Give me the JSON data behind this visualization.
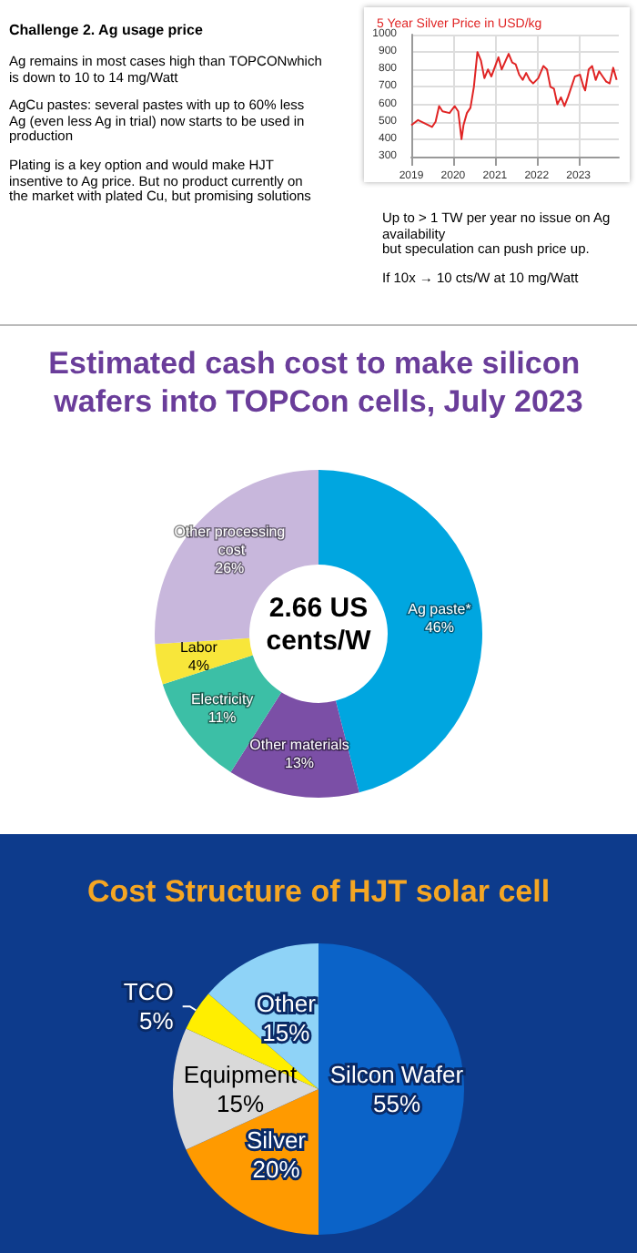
{
  "chart_data": [
    {
      "type": "other",
      "title": "Challenge 2.  Ag usage price",
      "annotations": [
        "Ag remains in most cases high  than TOPCONwhich is down to 10 to 14 mg/Watt",
        "AgCu pastes: several pastes with up to 60% less Ag (even less Ag in trial) now starts to be used in production",
        "Plating is a key option and would make HJT insentive to Ag price. But no product currently on the market with plated Cu, but promising solutions",
        "Up to > 1 TW per year no issue on Ag availability\nbut speculation can push price up.",
        "If 10x → 10 cts/W at 10 mg/Watt"
      ]
    },
    {
      "type": "line",
      "title": "5 Year Silver Price in USD/kg",
      "color": "#e02424",
      "grid": true,
      "legend": false,
      "marker": "none",
      "x": [
        "2019-01-01",
        "2019-03-01",
        "2019-05-01",
        "2019-07-01",
        "2019-08-01",
        "2019-09-01",
        "2019-10-01",
        "2019-12-01",
        "2020-01-15",
        "2020-02-15",
        "2020-03-15",
        "2020-04-01",
        "2020-05-01",
        "2020-06-01",
        "2020-07-01",
        "2020-08-01",
        "2020-09-01",
        "2020-10-01",
        "2020-11-01",
        "2020-12-01",
        "2021-01-15",
        "2021-02-01",
        "2021-03-01",
        "2021-05-01",
        "2021-06-01",
        "2021-07-01",
        "2021-08-01",
        "2021-09-01",
        "2021-10-01",
        "2021-11-01",
        "2021-12-01",
        "2022-01-15",
        "2022-03-01",
        "2022-04-01",
        "2022-05-01",
        "2022-06-01",
        "2022-07-01",
        "2022-08-01",
        "2022-09-01",
        "2022-10-01",
        "2022-12-01",
        "2023-01-15",
        "2023-02-15",
        "2023-03-01",
        "2023-04-01",
        "2023-05-01",
        "2023-06-01",
        "2023-07-01",
        "2023-08-01",
        "2023-09-01",
        "2023-10-01",
        "2023-11-01",
        "2023-12-01"
      ],
      "values": [
        480,
        510,
        490,
        470,
        500,
        590,
        560,
        550,
        590,
        560,
        400,
        480,
        550,
        580,
        700,
        900,
        850,
        750,
        800,
        760,
        840,
        870,
        800,
        890,
        840,
        830,
        770,
        740,
        780,
        740,
        720,
        750,
        820,
        800,
        700,
        690,
        600,
        640,
        590,
        640,
        760,
        770,
        700,
        680,
        800,
        820,
        740,
        790,
        760,
        730,
        720,
        810,
        740
      ],
      "xlim": [
        "2019-01-01",
        "2023-12-20"
      ],
      "xticks": [
        {
          "value": "2019-01-01",
          "label": "2019"
        },
        {
          "value": "2020-01-01",
          "label": "2020"
        },
        {
          "value": "2021-01-01",
          "label": "2021"
        },
        {
          "value": "2022-01-01",
          "label": "2022"
        },
        {
          "value": "2023-01-01",
          "label": "2023"
        }
      ],
      "ylim": [
        300,
        1000
      ],
      "yticks": [
        300,
        400,
        500,
        600,
        700,
        800,
        900,
        1000
      ]
    },
    {
      "type": "donut",
      "title": "Estimated cash cost to make silicon wafers into TOPCon cells, July 2023",
      "legend": false,
      "categories": [
        "Ag paste*",
        "Other materials",
        "Electricity",
        "Labor",
        "Other processing cost"
      ],
      "values": [
        46,
        13,
        11,
        4,
        26
      ],
      "value_labels": [
        "46%",
        "13%",
        "11%",
        "4%",
        "26%"
      ],
      "colors": [
        "#00a6e0",
        "#7b4fa6",
        "#3cbfa6",
        "#f8e63a",
        "#c8b7dc"
      ],
      "annotations": [
        "2.66 US cents/W"
      ]
    },
    {
      "type": "pie",
      "title": "Cost Structure of HJT solar cell",
      "legend": false,
      "categories": [
        "Silcon Wafer",
        "Silver",
        "Equipment",
        "TCO",
        "Other"
      ],
      "values": [
        55,
        20,
        15,
        5,
        15
      ],
      "value_labels": [
        "55%",
        "20%",
        "15%",
        "5%",
        "15%"
      ],
      "colors": [
        "#0b63c8",
        "#ff9a00",
        "#d9d9d9",
        "#ffee00",
        "#8fd3f7"
      ]
    }
  ]
}
